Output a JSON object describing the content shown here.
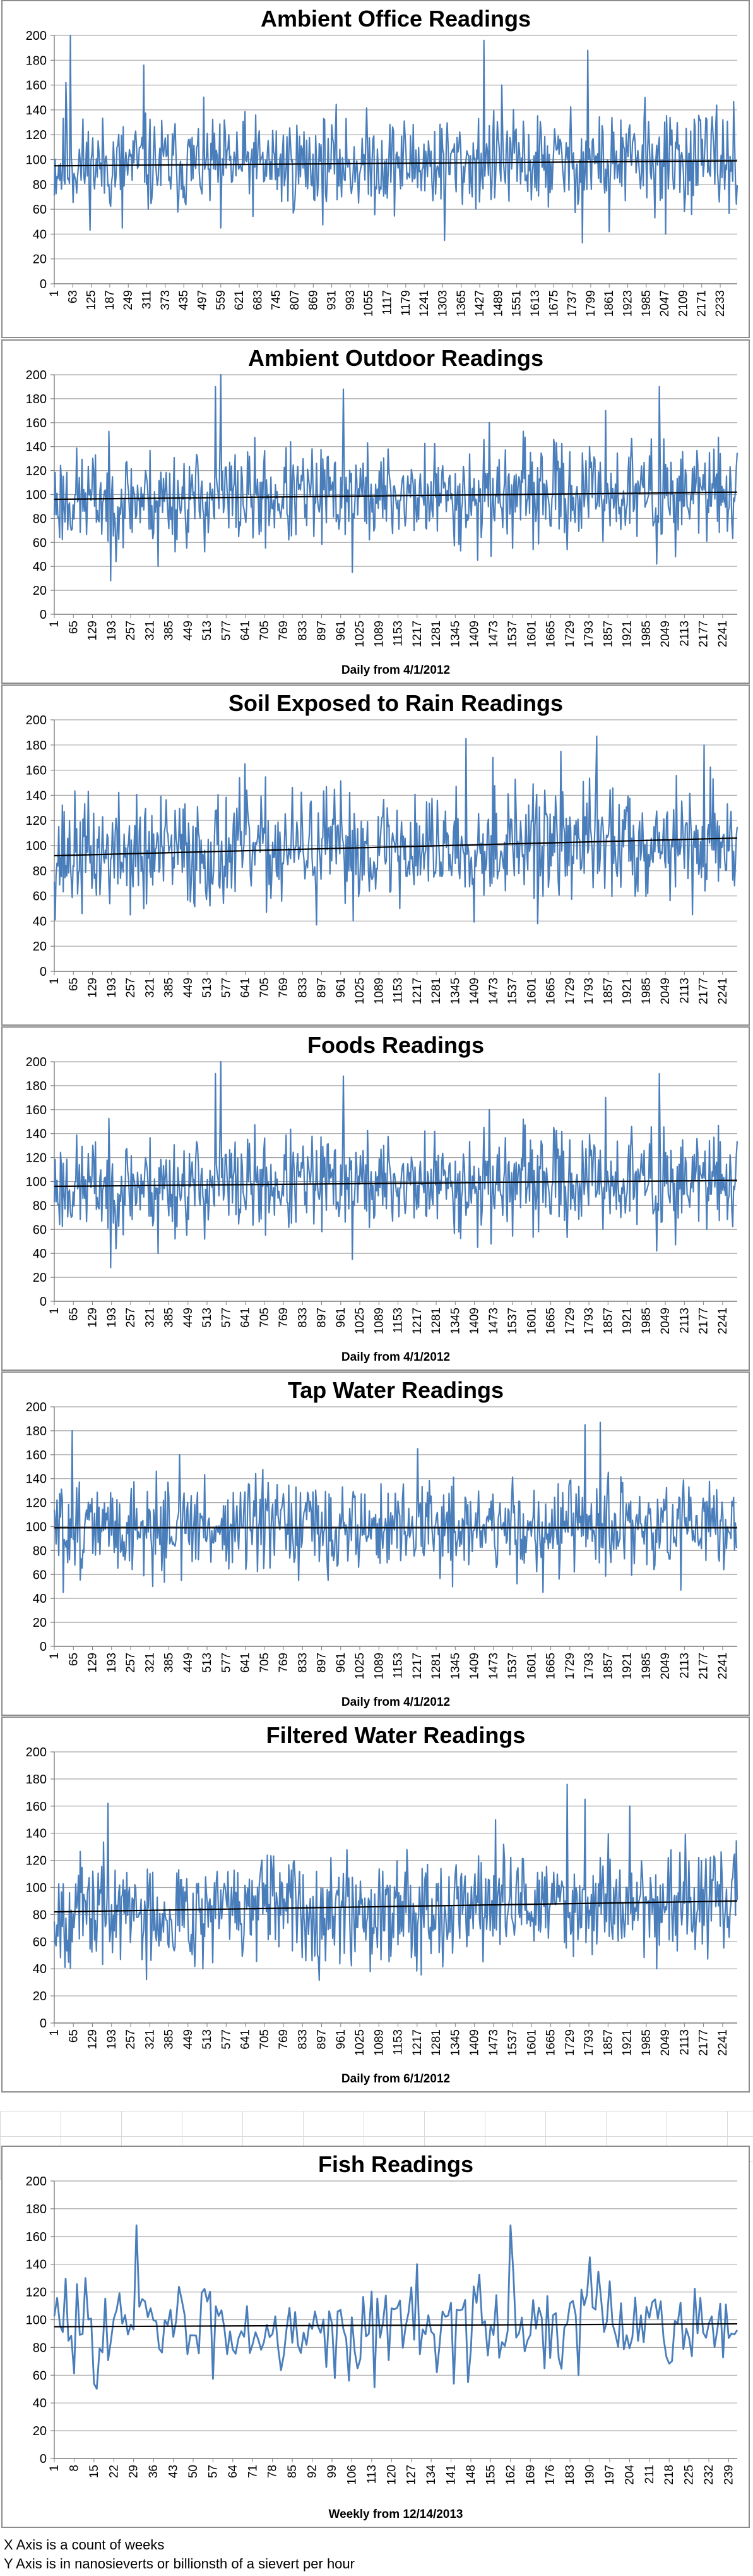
{
  "chart_data": [
    {
      "type": "line",
      "title": "Ambient Office Readings",
      "xlabel": "",
      "ylim": [
        0,
        200
      ],
      "yticks": [
        0,
        20,
        40,
        60,
        80,
        100,
        120,
        140,
        160,
        180,
        200
      ],
      "x_start": 1,
      "x_end": 2290,
      "x_step": 62,
      "trend": [
        95,
        99
      ],
      "band": [
        55,
        135
      ],
      "peaks": [
        [
          55,
          200
        ],
        [
          40,
          162
        ],
        [
          300,
          176
        ],
        [
          1440,
          196
        ],
        [
          1790,
          188
        ],
        [
          1500,
          160
        ],
        [
          1980,
          150
        ]
      ],
      "troughs": [
        [
          1310,
          35
        ],
        [
          1770,
          33
        ],
        [
          560,
          45
        ],
        [
          1860,
          42
        ],
        [
          230,
          45
        ],
        [
          2050,
          40
        ]
      ],
      "seed": 11,
      "series": [
        {
          "values_note": "daily readings"
        }
      ]
    },
    {
      "type": "line",
      "title": "Ambient Outdoor Readings",
      "xlabel": "Daily from 4/1/2012",
      "ylim": [
        0,
        200
      ],
      "yticks": [
        0,
        20,
        40,
        60,
        80,
        100,
        120,
        140,
        160,
        180,
        200
      ],
      "x_start": 1,
      "x_end": 2290,
      "x_step": 64,
      "trend": [
        96,
        102
      ],
      "band": [
        55,
        140
      ],
      "peaks": [
        [
          560,
          200
        ],
        [
          540,
          190
        ],
        [
          190,
          185
        ],
        [
          970,
          188
        ],
        [
          2030,
          190
        ],
        [
          1850,
          170
        ],
        [
          1460,
          160
        ]
      ],
      "troughs": [
        [
          190,
          28
        ],
        [
          350,
          40
        ],
        [
          1000,
          35
        ],
        [
          1420,
          45
        ],
        [
          2020,
          42
        ]
      ],
      "seed": 23
    },
    {
      "type": "line",
      "title": "Soil Exposed to Rain Readings",
      "xlabel": "",
      "ylim": [
        0,
        200
      ],
      "yticks": [
        0,
        20,
        40,
        60,
        80,
        100,
        120,
        140,
        160,
        180,
        200
      ],
      "x_start": 1,
      "x_end": 2290,
      "x_step": 64,
      "trend": [
        92,
        106
      ],
      "band": [
        55,
        150
      ],
      "peaks": [
        [
          1380,
          185
        ],
        [
          1820,
          187
        ],
        [
          2180,
          180
        ],
        [
          1700,
          175
        ],
        [
          1470,
          170
        ],
        [
          640,
          165
        ]
      ],
      "troughs": [
        [
          880,
          37
        ],
        [
          1620,
          38
        ],
        [
          2140,
          45
        ],
        [
          300,
          50
        ],
        [
          1160,
          50
        ]
      ],
      "seed": 37
    },
    {
      "type": "line",
      "title": "Foods Readings",
      "xlabel": "Daily from 4/1/2012",
      "ylim": [
        0,
        200
      ],
      "yticks": [
        0,
        20,
        40,
        60,
        80,
        100,
        120,
        140,
        160,
        180,
        200
      ],
      "x_start": 1,
      "x_end": 2290,
      "x_step": 64,
      "trend": [
        96,
        101
      ],
      "band": [
        55,
        140
      ],
      "peaks": [
        [
          560,
          200
        ],
        [
          540,
          190
        ],
        [
          190,
          185
        ],
        [
          970,
          188
        ],
        [
          2030,
          190
        ],
        [
          1850,
          170
        ],
        [
          1460,
          160
        ]
      ],
      "troughs": [
        [
          190,
          28
        ],
        [
          350,
          40
        ],
        [
          1000,
          35
        ],
        [
          1420,
          45
        ],
        [
          2020,
          42
        ]
      ],
      "seed": 23
    },
    {
      "type": "line",
      "title": "Tap Water Readings",
      "xlabel": "Daily from 4/1/2012",
      "ylim": [
        0,
        200
      ],
      "yticks": [
        0,
        20,
        40,
        60,
        80,
        100,
        120,
        140,
        160,
        180,
        200
      ],
      "x_start": 1,
      "x_end": 2290,
      "x_step": 64,
      "trend": [
        99,
        99
      ],
      "band": [
        60,
        140
      ],
      "peaks": [
        [
          60,
          180
        ],
        [
          1780,
          185
        ],
        [
          1830,
          187
        ],
        [
          1220,
          165
        ],
        [
          420,
          160
        ]
      ],
      "troughs": [
        [
          30,
          45
        ],
        [
          1640,
          45
        ],
        [
          2100,
          47
        ],
        [
          820,
          55
        ]
      ],
      "seed": 51
    },
    {
      "type": "line",
      "title": "Filtered Water Readings",
      "xlabel": "Daily from 6/1/2012",
      "ylim": [
        0,
        200
      ],
      "yticks": [
        0,
        20,
        40,
        60,
        80,
        100,
        120,
        140,
        160,
        180,
        200
      ],
      "x_start": 1,
      "x_end": 2290,
      "x_step": 64,
      "trend": [
        82,
        90
      ],
      "band": [
        50,
        130
      ],
      "peaks": [
        [
          180,
          162
        ],
        [
          1720,
          176
        ],
        [
          1780,
          165
        ],
        [
          1930,
          160
        ],
        [
          1480,
          150
        ]
      ],
      "troughs": [
        [
          310,
          32
        ],
        [
          500,
          40
        ],
        [
          1060,
          38
        ],
        [
          2020,
          40
        ]
      ],
      "seed": 67
    },
    {
      "type": "line",
      "title": "Fish Readings",
      "xlabel": "Weekly from 12/14/2013",
      "ylim": [
        0,
        200
      ],
      "yticks": [
        0,
        20,
        40,
        60,
        80,
        100,
        120,
        140,
        160,
        180,
        200
      ],
      "x_start": 1,
      "x_end": 242,
      "x_step": 7,
      "trend": [
        95,
        97
      ],
      "band": [
        60,
        130
      ],
      "peaks": [
        [
          30,
          168
        ],
        [
          162,
          168
        ],
        [
          190,
          145
        ],
        [
          12,
          130
        ],
        [
          129,
          140
        ]
      ],
      "troughs": [
        [
          147,
          55
        ],
        [
          186,
          60
        ],
        [
          100,
          58
        ]
      ],
      "seed": 83
    }
  ],
  "footnotes": {
    "line1": "X Axis is a count of weeks",
    "line2": "Y Axis is in nanosieverts or billionsth of a sievert per hour"
  },
  "colors": {
    "series": "#4a7ebb",
    "trend": "#000000",
    "grid": "#a6a6a6"
  }
}
